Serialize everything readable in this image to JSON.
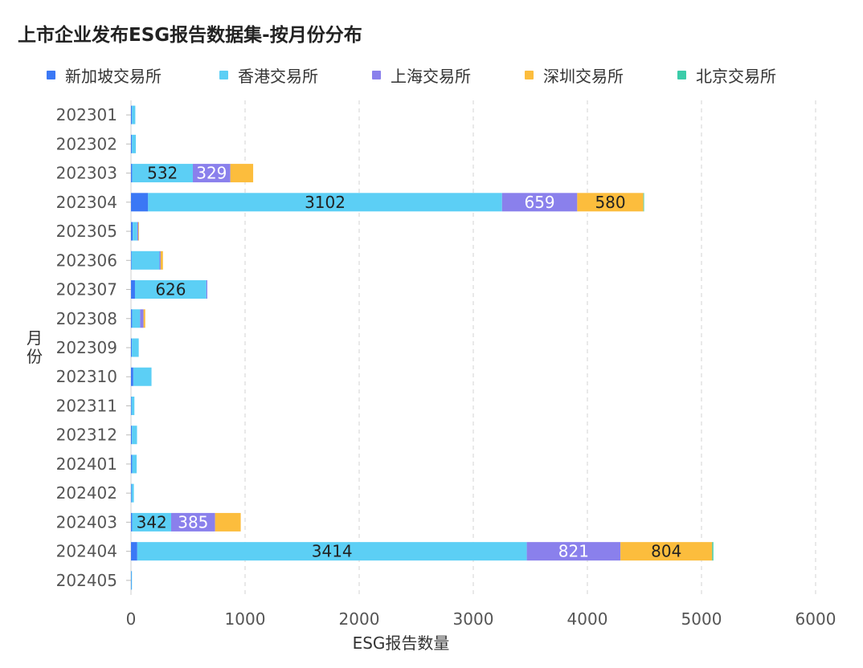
{
  "title": "上市企业发布ESG报告数据集-按月份分布",
  "chart_data": {
    "type": "bar",
    "orientation": "horizontal",
    "stacked": true,
    "title": "上市企业发布ESG报告数据集-按月份分布",
    "xlabel": "ESG报告数量",
    "ylabel": "月份",
    "xlim": [
      0,
      6000
    ],
    "x_ticks": [
      0,
      1000,
      2000,
      3000,
      4000,
      5000,
      6000
    ],
    "grid": "vertical-dashed",
    "legend_position": "top",
    "categories": [
      "202301",
      "202302",
      "202303",
      "202304",
      "202305",
      "202306",
      "202307",
      "202308",
      "202309",
      "202310",
      "202311",
      "202312",
      "202401",
      "202402",
      "202403",
      "202404",
      "202405"
    ],
    "series": [
      {
        "name": "新加坡交易所",
        "color": "#3b78f5",
        "values": [
          8,
          8,
          10,
          150,
          15,
          5,
          35,
          10,
          8,
          20,
          5,
          8,
          10,
          5,
          10,
          55,
          3
        ]
      },
      {
        "name": "香港交易所",
        "color": "#5ccff5",
        "values": [
          30,
          35,
          532,
          3102,
          40,
          245,
          626,
          70,
          60,
          160,
          25,
          45,
          40,
          20,
          342,
          3414,
          5
        ]
      },
      {
        "name": "上海交易所",
        "color": "#8a80ec",
        "values": [
          0,
          0,
          329,
          659,
          10,
          10,
          8,
          30,
          0,
          0,
          0,
          0,
          0,
          0,
          385,
          821,
          0
        ]
      },
      {
        "name": "深圳交易所",
        "color": "#fcbd3d",
        "values": [
          0,
          0,
          200,
          580,
          5,
          20,
          0,
          15,
          0,
          0,
          0,
          0,
          0,
          0,
          225,
          804,
          0
        ]
      },
      {
        "name": "北京交易所",
        "color": "#3bcca9",
        "values": [
          0,
          0,
          0,
          3,
          0,
          0,
          0,
          0,
          0,
          0,
          0,
          0,
          0,
          0,
          0,
          10,
          0
        ]
      }
    ],
    "data_labels": [
      {
        "category": "202303",
        "series": "香港交易所",
        "text": "532"
      },
      {
        "category": "202303",
        "series": "上海交易所",
        "text": "329"
      },
      {
        "category": "202304",
        "series": "香港交易所",
        "text": "3102"
      },
      {
        "category": "202304",
        "series": "上海交易所",
        "text": "659"
      },
      {
        "category": "202304",
        "series": "深圳交易所",
        "text": "580"
      },
      {
        "category": "202307",
        "series": "香港交易所",
        "text": "626"
      },
      {
        "category": "202403",
        "series": "香港交易所",
        "text": "342"
      },
      {
        "category": "202403",
        "series": "上海交易所",
        "text": "385"
      },
      {
        "category": "202404",
        "series": "香港交易所",
        "text": "3414"
      },
      {
        "category": "202404",
        "series": "上海交易所",
        "text": "821"
      },
      {
        "category": "202404",
        "series": "深圳交易所",
        "text": "804"
      }
    ]
  }
}
